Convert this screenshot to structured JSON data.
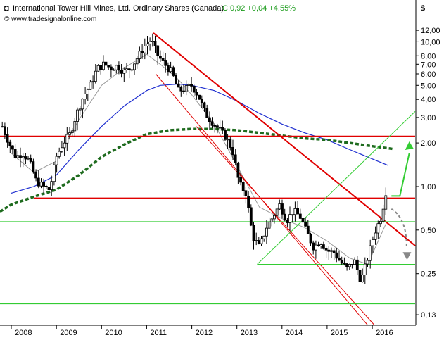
{
  "header": {
    "title": "International Tower Hill Mines, Ltd. Ordinary Shares (Canada)",
    "quote": "C:0,92 +0,04 +4,55%",
    "copyright": "© www.tradesignalonline.com",
    "currency": "$"
  },
  "colors": {
    "candle": "#000000",
    "red_line": "#e00000",
    "green_line": "#33cc33",
    "ma_blue": "#1f2fd0",
    "ma_gray": "#999999",
    "ma_green": "#1e6b1e",
    "axis": "#000000",
    "arrow_up": "#33cc33",
    "arrow_down": "#888888"
  },
  "chart_data": {
    "type": "candlestick",
    "scale": "log",
    "ylim": [
      0.11,
      13.0
    ],
    "xlim": [
      2007.75,
      2016.95
    ],
    "x_ticks": [
      "2008",
      "2009",
      "2010",
      "2011",
      "2012",
      "2013",
      "2014",
      "2015",
      "2016"
    ],
    "y_ticks": [
      "12,00",
      "10,00",
      "8,00",
      "7,00",
      "6,00",
      "5,00",
      "4,00",
      "3,00",
      "2,00",
      "1,00",
      "0,50",
      "0,25",
      "0,13"
    ],
    "y_tick_values": [
      12,
      10,
      8,
      7,
      6,
      5,
      4,
      3,
      2,
      1,
      0.5,
      0.25,
      0.13
    ],
    "last_close": 0.92,
    "change": 0.04,
    "change_pct": 4.55,
    "price_path": [
      [
        2007.8,
        2.6
      ],
      [
        2007.95,
        2.0
      ],
      [
        2008.1,
        1.6
      ],
      [
        2008.25,
        1.7
      ],
      [
        2008.4,
        1.5
      ],
      [
        2008.55,
        1.1
      ],
      [
        2008.7,
        1.0
      ],
      [
        2008.85,
        0.95
      ],
      [
        2009.0,
        1.6
      ],
      [
        2009.15,
        2.0
      ],
      [
        2009.3,
        2.3
      ],
      [
        2009.45,
        3.2
      ],
      [
        2009.6,
        4.2
      ],
      [
        2009.75,
        5.0
      ],
      [
        2009.9,
        6.5
      ],
      [
        2010.05,
        7.0
      ],
      [
        2010.2,
        6.6
      ],
      [
        2010.35,
        6.8
      ],
      [
        2010.5,
        6.2
      ],
      [
        2010.65,
        6.6
      ],
      [
        2010.8,
        7.8
      ],
      [
        2010.95,
        9.3
      ],
      [
        2011.1,
        10.3
      ],
      [
        2011.25,
        8.0
      ],
      [
        2011.4,
        7.0
      ],
      [
        2011.55,
        6.2
      ],
      [
        2011.7,
        4.6
      ],
      [
        2011.85,
        4.7
      ],
      [
        2012.0,
        5.0
      ],
      [
        2012.15,
        4.2
      ],
      [
        2012.3,
        3.2
      ],
      [
        2012.45,
        2.8
      ],
      [
        2012.6,
        2.5
      ],
      [
        2012.75,
        2.2
      ],
      [
        2012.9,
        1.8
      ],
      [
        2013.05,
        1.05
      ],
      [
        2013.2,
        0.9
      ],
      [
        2013.35,
        0.45
      ],
      [
        2013.5,
        0.38
      ],
      [
        2013.65,
        0.52
      ],
      [
        2013.8,
        0.62
      ],
      [
        2013.95,
        0.75
      ],
      [
        2014.1,
        0.58
      ],
      [
        2014.25,
        0.68
      ],
      [
        2014.4,
        0.62
      ],
      [
        2014.55,
        0.48
      ],
      [
        2014.7,
        0.38
      ],
      [
        2014.85,
        0.42
      ],
      [
        2015.0,
        0.36
      ],
      [
        2015.15,
        0.35
      ],
      [
        2015.3,
        0.3
      ],
      [
        2015.45,
        0.27
      ],
      [
        2015.6,
        0.31
      ],
      [
        2015.75,
        0.22
      ],
      [
        2015.9,
        0.32
      ],
      [
        2016.05,
        0.48
      ],
      [
        2016.2,
        0.62
      ],
      [
        2016.3,
        0.92
      ]
    ],
    "ma_long_path": [
      [
        2007.75,
        0.67
      ],
      [
        2008.0,
        0.75
      ],
      [
        2008.5,
        0.85
      ],
      [
        2009.0,
        0.95
      ],
      [
        2009.5,
        1.2
      ],
      [
        2010.0,
        1.6
      ],
      [
        2010.5,
        1.95
      ],
      [
        2011.0,
        2.3
      ],
      [
        2011.5,
        2.45
      ],
      [
        2012.0,
        2.5
      ],
      [
        2012.5,
        2.5
      ],
      [
        2013.0,
        2.45
      ],
      [
        2013.5,
        2.35
      ],
      [
        2014.0,
        2.25
      ],
      [
        2014.5,
        2.15
      ],
      [
        2015.0,
        2.1
      ],
      [
        2015.5,
        2.0
      ],
      [
        2016.0,
        1.9
      ],
      [
        2016.45,
        1.82
      ]
    ],
    "ma_mid_path": [
      [
        2008.0,
        0.9
      ],
      [
        2008.5,
        1.0
      ],
      [
        2009.0,
        1.2
      ],
      [
        2009.5,
        1.8
      ],
      [
        2010.0,
        2.6
      ],
      [
        2010.5,
        3.6
      ],
      [
        2011.0,
        4.6
      ],
      [
        2011.3,
        5.0
      ],
      [
        2011.7,
        5.1
      ],
      [
        2012.0,
        5.0
      ],
      [
        2012.5,
        4.6
      ],
      [
        2013.0,
        3.9
      ],
      [
        2013.5,
        3.2
      ],
      [
        2014.0,
        2.7
      ],
      [
        2014.5,
        2.35
      ],
      [
        2015.0,
        2.1
      ],
      [
        2015.5,
        1.8
      ],
      [
        2016.0,
        1.55
      ],
      [
        2016.35,
        1.4
      ]
    ],
    "ma_short_path": [
      [
        2008.0,
        1.7
      ],
      [
        2008.5,
        1.25
      ],
      [
        2009.0,
        1.5
      ],
      [
        2009.5,
        2.9
      ],
      [
        2010.0,
        5.0
      ],
      [
        2010.5,
        6.6
      ],
      [
        2011.0,
        8.2
      ],
      [
        2011.3,
        7.0
      ],
      [
        2011.7,
        5.5
      ],
      [
        2012.0,
        4.3
      ],
      [
        2012.5,
        2.7
      ],
      [
        2013.0,
        1.4
      ],
      [
        2013.5,
        0.72
      ],
      [
        2014.0,
        0.6
      ],
      [
        2014.5,
        0.52
      ],
      [
        2015.0,
        0.42
      ],
      [
        2015.5,
        0.32
      ],
      [
        2015.9,
        0.29
      ],
      [
        2016.3,
        0.55
      ]
    ],
    "red_lines": [
      {
        "x1": 2011.15,
        "y1": 11.5,
        "x2": 2016.95,
        "y2": 0.39,
        "width": 2
      },
      {
        "x1": 2007.75,
        "y1": 2.22,
        "x2": 2016.95,
        "y2": 2.22,
        "width": 2
      },
      {
        "x1": 2008.5,
        "y1": 0.83,
        "x2": 2016.95,
        "y2": 0.83,
        "width": 2
      },
      {
        "x1": 2011.2,
        "y1": 6.0,
        "x2": 2015.9,
        "y2": 0.11,
        "width": 1
      },
      {
        "x1": 2012.1,
        "y1": 2.6,
        "x2": 2016.05,
        "y2": 0.11,
        "width": 1
      }
    ],
    "green_lines": [
      {
        "x1": 2007.75,
        "y1": 0.57,
        "x2": 2016.95,
        "y2": 0.57,
        "width": 1.5
      },
      {
        "x1": 2007.75,
        "y1": 0.155,
        "x2": 2016.95,
        "y2": 0.155,
        "width": 1.5
      },
      {
        "x1": 2013.45,
        "y1": 0.29,
        "x2": 2016.95,
        "y2": 0.29,
        "width": 1
      },
      {
        "x1": 2013.45,
        "y1": 0.29,
        "x2": 2016.95,
        "y2": 3.3,
        "width": 1
      }
    ]
  }
}
